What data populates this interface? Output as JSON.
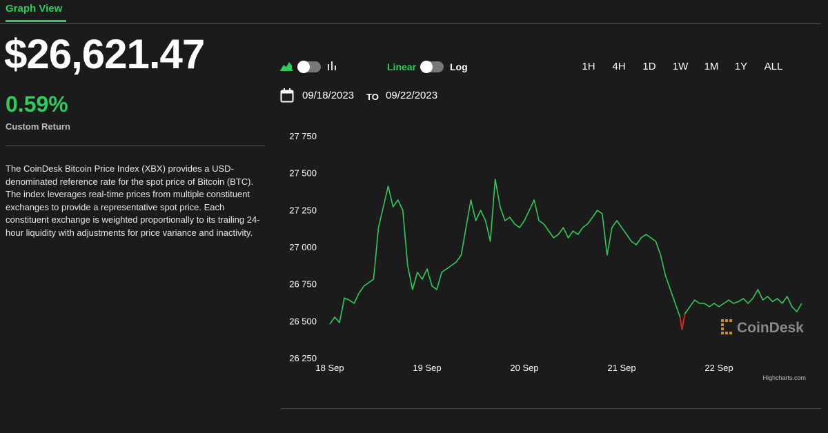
{
  "tab": "Graph View",
  "price": "$26,621.47",
  "return_value": "0.59%",
  "return_label": "Custom Return",
  "description": "The CoinDesk Bitcoin Price Index (XBX) provides a USD-denominated reference rate for the spot price of Bitcoin (BTC). The index leverages real-time prices from multiple constituent exchanges to provide a representative spot price. Each constituent exchange is weighted proportionally to its trailing 24-hour liquidity with adjustments for price variance and inactivity.",
  "scale_toggle": {
    "left": "Linear",
    "right": "Log"
  },
  "ranges": [
    "1H",
    "4H",
    "1D",
    "1W",
    "1M",
    "1Y",
    "ALL"
  ],
  "date_from": "09/18/2023",
  "date_sep": "TO",
  "date_to": "09/22/2023",
  "chart_data": {
    "type": "line",
    "color": "#2ecc5a",
    "below_start_color": "#e0201b",
    "grid": false,
    "watermark": "CoinDesk",
    "credit": "Highcharts.com",
    "x": [
      18,
      18.05,
      18.1,
      18.15,
      18.2,
      18.25,
      18.3,
      18.35,
      18.4,
      18.45,
      18.5,
      18.55,
      18.6,
      18.65,
      18.7,
      18.75,
      18.8,
      18.85,
      18.9,
      18.95,
      19,
      19.05,
      19.1,
      19.15,
      19.2,
      19.25,
      19.3,
      19.35,
      19.4,
      19.45,
      19.5,
      19.55,
      19.6,
      19.65,
      19.7,
      19.75,
      19.8,
      19.85,
      19.9,
      19.95,
      20,
      20.05,
      20.1,
      20.15,
      20.2,
      20.25,
      20.3,
      20.35,
      20.4,
      20.45,
      20.5,
      20.55,
      20.6,
      20.65,
      20.7,
      20.75,
      20.8,
      20.85,
      20.9,
      20.95,
      21,
      21.05,
      21.1,
      21.15,
      21.2,
      21.25,
      21.3,
      21.35,
      21.4,
      21.45,
      21.5,
      21.55,
      21.6,
      21.62,
      21.65,
      21.7,
      21.75,
      21.8,
      21.85,
      21.9,
      21.95,
      22,
      22.05,
      22.1,
      22.15,
      22.2,
      22.25,
      22.3,
      22.35,
      22.4,
      22.45,
      22.5,
      22.55,
      22.6,
      22.65,
      22.7,
      22.75,
      22.8,
      22.85
    ],
    "values": [
      26478,
      26525,
      26488,
      26655,
      26640,
      26618,
      26688,
      26735,
      26758,
      26781,
      27130,
      27270,
      27410,
      27270,
      27317,
      27247,
      26874,
      26711,
      26828,
      26781,
      26851,
      26735,
      26711,
      26828,
      26851,
      26874,
      26898,
      26944,
      27130,
      27317,
      27177,
      27247,
      27177,
      27037,
      27457,
      27270,
      27177,
      27200,
      27154,
      27130,
      27177,
      27247,
      27317,
      27177,
      27154,
      27107,
      27061,
      27084,
      27130,
      27061,
      27107,
      27084,
      27130,
      27154,
      27200,
      27247,
      27224,
      26944,
      27130,
      27177,
      27130,
      27084,
      27037,
      27014,
      27061,
      27084,
      27061,
      27037,
      26944,
      26805,
      26711,
      26618,
      26525,
      26441,
      26548,
      26595,
      26641,
      26618,
      26618,
      26595,
      26618,
      26595,
      26618,
      26641,
      26618,
      26630,
      26650,
      26618,
      26655,
      26711,
      26641,
      26665,
      26630,
      26650,
      26618,
      26665,
      26595,
      26562,
      26618
    ],
    "xlim": [
      18,
      22.9
    ],
    "xticks": [
      {
        "value": 18,
        "label": "18 Sep"
      },
      {
        "value": 19,
        "label": "19 Sep"
      },
      {
        "value": 20,
        "label": "20 Sep"
      },
      {
        "value": 21,
        "label": "21 Sep"
      },
      {
        "value": 22,
        "label": "22 Sep"
      }
    ],
    "ylim": [
      26250,
      27750
    ],
    "yticks": [
      {
        "value": 26250,
        "label": "26 250"
      },
      {
        "value": 26500,
        "label": "26 500"
      },
      {
        "value": 26750,
        "label": "26 750"
      },
      {
        "value": 27000,
        "label": "27 000"
      },
      {
        "value": 27250,
        "label": "27 250"
      },
      {
        "value": 27500,
        "label": "27 500"
      },
      {
        "value": 27750,
        "label": "27 750"
      }
    ]
  }
}
